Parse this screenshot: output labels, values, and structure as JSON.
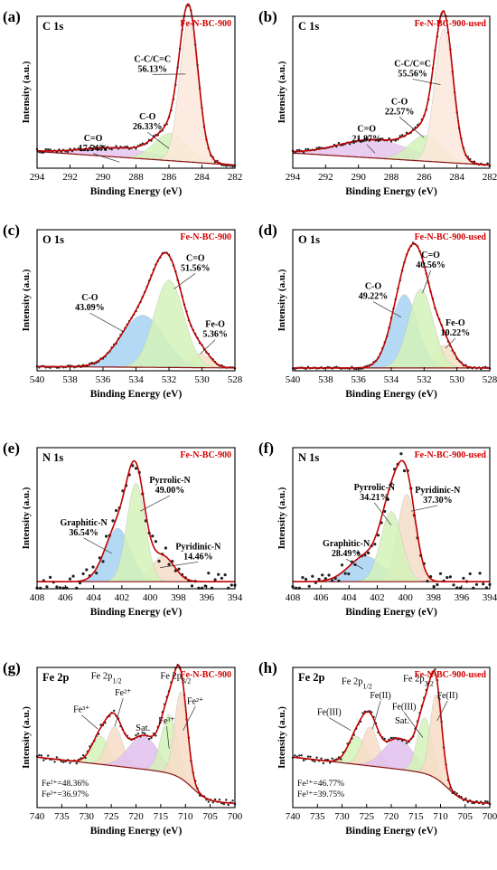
{
  "colors": {
    "sample_label": "#d40000",
    "fit_line": "#c00000",
    "points": "#222222",
    "background_line": "#8a1010",
    "component_fills": [
      "#ffd4c6",
      "#d0f0b8",
      "#a8d4f4",
      "#e2c0ee",
      "#f6e2c0"
    ]
  },
  "panels": [
    {
      "id": "a",
      "letter": "(a)",
      "region": "C 1s",
      "sample": "Fe-N-BC-900",
      "xlabel": "Binding Energy (eV)",
      "ylabel": "Intensity (a.u.)",
      "xlim": [
        294,
        282
      ],
      "xticks": [
        294,
        292,
        290,
        288,
        286,
        284,
        282
      ],
      "chart_data": {
        "type": "line",
        "components": [
          {
            "name": "C-C/C=C",
            "center": 284.8,
            "width": 0.55,
            "height": 0.93,
            "color": "#fbe8da",
            "label": "C-C/C=C",
            "value": "56.13%",
            "label_pos": [
              287.0,
              0.7
            ],
            "arrow_to": [
              285.0,
              0.62
            ]
          },
          {
            "name": "C-O",
            "center": 285.9,
            "width": 1.0,
            "height": 0.18,
            "color": "#d4f2b8",
            "label": "C-O",
            "value": "26.33%",
            "label_pos": [
              287.3,
              0.32
            ],
            "arrow_to": [
              286.0,
              0.13
            ]
          },
          {
            "name": "C=O",
            "center": 289.0,
            "width": 2.2,
            "height": 0.06,
            "color": "#e6c6ee",
            "label": "C=O",
            "value": "17.54%",
            "label_pos": [
              290.6,
              0.18
            ],
            "arrow_to": [
              289.0,
              0.04
            ]
          }
        ],
        "background": {
          "high_be": 0.11,
          "low_be": 0.02
        },
        "noise": 0.012
      }
    },
    {
      "id": "b",
      "letter": "(b)",
      "region": "C 1s",
      "sample": "Fe-N-BC-900-used",
      "xlabel": "Binding Energy (eV)",
      "ylabel": "Intensity (a.u.)",
      "xlim": [
        294,
        282
      ],
      "xticks": [
        294,
        292,
        290,
        288,
        286,
        284,
        282
      ],
      "chart_data": {
        "type": "line",
        "components": [
          {
            "name": "C-C/C=C",
            "center": 284.8,
            "width": 0.55,
            "height": 0.88,
            "color": "#fbe8da",
            "label": "C-C/C=C",
            "value": "55.56%",
            "label_pos": [
              286.7,
              0.67
            ],
            "arrow_to": [
              285.0,
              0.55
            ]
          },
          {
            "name": "C-O",
            "center": 285.9,
            "width": 1.0,
            "height": 0.17,
            "color": "#d4f2b8",
            "label": "C-O",
            "value": "22.57%",
            "label_pos": [
              287.5,
              0.42
            ],
            "arrow_to": [
              286.0,
              0.2
            ]
          },
          {
            "name": "C=O",
            "center": 289.0,
            "width": 2.2,
            "height": 0.12,
            "color": "#e6c6ee",
            "label": "C=O",
            "value": "21.87%",
            "label_pos": [
              289.5,
              0.24
            ],
            "arrow_to": [
              289.0,
              0.1
            ]
          }
        ],
        "background": {
          "high_be": 0.1,
          "low_be": 0.02
        },
        "noise": 0.012
      }
    },
    {
      "id": "c",
      "letter": "(c)",
      "region": "O 1s",
      "sample": "Fe-N-BC-900",
      "xlabel": "Binding Energy (eV)",
      "ylabel": "Intensity (a.u.)",
      "xlim": [
        540,
        528
      ],
      "xticks": [
        540,
        538,
        536,
        534,
        532,
        530,
        528
      ],
      "chart_data": {
        "type": "line",
        "components": [
          {
            "name": "C=O",
            "center": 532.0,
            "width": 0.9,
            "height": 0.62,
            "color": "#d4f2b8",
            "label": "C=O",
            "value": "51.56%",
            "label_pos": [
              530.4,
              0.78
            ],
            "arrow_to": [
              531.7,
              0.58
            ]
          },
          {
            "name": "C-O",
            "center": 533.6,
            "width": 1.3,
            "height": 0.37,
            "color": "#a6d2f2",
            "label": "C-O",
            "value": "43.09%",
            "label_pos": [
              536.8,
              0.5
            ],
            "arrow_to": [
              534.8,
              0.28
            ]
          },
          {
            "name": "Fe-O",
            "center": 530.1,
            "width": 0.6,
            "height": 0.1,
            "color": "#f6e2c4",
            "label": "Fe-O",
            "value": "5.36%",
            "label_pos": [
              529.2,
              0.31
            ],
            "arrow_to": [
              530.1,
              0.12
            ]
          }
        ],
        "background": {
          "high_be": 0.03,
          "low_be": 0.02
        },
        "noise": 0.008
      }
    },
    {
      "id": "d",
      "letter": "(d)",
      "region": "O 1s",
      "sample": "Fe-N-BC-900-used",
      "xlabel": "Binding Energy (eV)",
      "ylabel": "Intensity (a.u.)",
      "xlim": [
        540,
        528
      ],
      "xticks": [
        540,
        538,
        536,
        534,
        532,
        530,
        528
      ],
      "chart_data": {
        "type": "line",
        "components": [
          {
            "name": "C=O",
            "center": 532.2,
            "width": 0.75,
            "height": 0.56,
            "color": "#d4f2b8",
            "label": "C=O",
            "value": "40.56%",
            "label_pos": [
              531.6,
              0.8
            ],
            "arrow_to": [
              532.1,
              0.55
            ]
          },
          {
            "name": "C-O",
            "center": 533.2,
            "width": 0.8,
            "height": 0.52,
            "color": "#a6d2f2",
            "label": "C-O",
            "value": "49.22%",
            "label_pos": [
              535.1,
              0.58
            ],
            "arrow_to": [
              533.4,
              0.38
            ]
          },
          {
            "name": "Fe-O",
            "center": 530.8,
            "width": 0.6,
            "height": 0.16,
            "color": "#f6e2c4",
            "label": "Fe-O",
            "value": "10.22%",
            "label_pos": [
              530.1,
              0.32
            ],
            "arrow_to": [
              530.7,
              0.16
            ]
          }
        ],
        "background": {
          "high_be": 0.02,
          "low_be": 0.02
        },
        "noise": 0.008
      }
    },
    {
      "id": "e",
      "letter": "(e)",
      "region": "N 1s",
      "sample": "Fe-N-BC-900",
      "xlabel": "Binding Energy (eV)",
      "ylabel": "Intensity (a.u.)",
      "xlim": [
        408,
        394
      ],
      "xticks": [
        408,
        406,
        404,
        402,
        400,
        398,
        396,
        394
      ],
      "chart_data": {
        "type": "line",
        "components": [
          {
            "name": "Pyrrolic-N",
            "center": 401.0,
            "width": 0.65,
            "height": 0.7,
            "color": "#d4f2b8",
            "label": "Pyrrolic-N",
            "value": "49.00%",
            "label_pos": [
              398.6,
              0.75
            ],
            "arrow_to": [
              400.7,
              0.55
            ]
          },
          {
            "name": "Graphitic-N",
            "center": 402.3,
            "width": 0.9,
            "height": 0.38,
            "color": "#a6d2f2",
            "label": "Graphitic-N",
            "value": "36.54%",
            "label_pos": [
              404.7,
              0.45
            ],
            "arrow_to": [
              402.7,
              0.25
            ]
          },
          {
            "name": "Pyridinic-N",
            "center": 399.1,
            "width": 0.8,
            "height": 0.18,
            "color": "#f6dcc8",
            "label": "Pyridinic-N",
            "value": "14.46%",
            "label_pos": [
              396.6,
              0.28
            ],
            "arrow_to": [
              399.3,
              0.15
            ]
          }
        ],
        "background": {
          "high_be": 0.05,
          "low_be": 0.05
        },
        "noise": 0.07
      }
    },
    {
      "id": "f",
      "letter": "(f)",
      "region": "N 1s",
      "sample": "Fe-N-BC-900-used",
      "xlabel": "Binding Energy (eV)",
      "ylabel": "Intensity (a.u.)",
      "xlim": [
        408,
        394
      ],
      "xticks": [
        408,
        406,
        404,
        402,
        400,
        398,
        396,
        394
      ],
      "chart_data": {
        "type": "line",
        "components": [
          {
            "name": "Pyrrolic-N",
            "center": 401.0,
            "width": 0.75,
            "height": 0.5,
            "color": "#d4f2b8",
            "label": "Pyrrolic-N",
            "value": "34.21%",
            "label_pos": [
              402.2,
              0.7
            ],
            "arrow_to": [
              401.0,
              0.45
            ]
          },
          {
            "name": "Pyridinic-N",
            "center": 399.9,
            "width": 0.65,
            "height": 0.62,
            "color": "#f6dcc8",
            "label": "Pyridinic-N",
            "value": "37.30%",
            "label_pos": [
              397.7,
              0.68
            ],
            "arrow_to": [
              399.6,
              0.55
            ]
          },
          {
            "name": "Graphitic-N",
            "center": 402.8,
            "width": 1.2,
            "height": 0.18,
            "color": "#a6d2f2",
            "label": "Graphitic-N",
            "value": "28.49%",
            "label_pos": [
              404.2,
              0.3
            ],
            "arrow_to": [
              403.0,
              0.14
            ]
          }
        ],
        "background": {
          "high_be": 0.05,
          "low_be": 0.05
        },
        "noise": 0.06
      }
    },
    {
      "id": "g",
      "letter": "(g)",
      "region": "Fe 2p",
      "sample": "Fe-N-BC-900",
      "xlabel": "Binding Energy (eV)",
      "ylabel": "Intensity (a.u.)",
      "xlim": [
        740,
        700
      ],
      "xticks": [
        740,
        735,
        730,
        725,
        720,
        715,
        710,
        705,
        700
      ],
      "peak_labels": [
        {
          "text": "Fe 2p",
          "sub": "1/2",
          "x": 726.0,
          "y": 0.92
        },
        {
          "text": "Fe 2p",
          "sub": "3/2",
          "x": 712.0,
          "y": 0.92
        },
        {
          "text": "Sat.",
          "x": 718.6,
          "y": 0.55
        }
      ],
      "ratio_lines": [
        "Fe²⁺=48.36%",
        "Fe³⁺=36.97%"
      ],
      "chart_data": {
        "type": "line",
        "components": [
          {
            "name": "Fe2+ 2p3/2",
            "center": 710.9,
            "width": 1.3,
            "height": 0.62,
            "color": "#f8dcc8",
            "label": "Fe²⁺",
            "label_pos": [
              708.0,
              0.74
            ],
            "arrow_to": [
              710.5,
              0.55
            ]
          },
          {
            "name": "Fe3+ 2p3/2",
            "center": 713.3,
            "width": 1.6,
            "height": 0.42,
            "color": "#d4f2b8",
            "label": "Fe³⁺",
            "label_pos": [
              713.8,
              0.6
            ],
            "arrow_to": [
              713.3,
              0.42
            ]
          },
          {
            "name": "Sat.",
            "center": 718.5,
            "width": 3.0,
            "height": 0.24,
            "color": "#e2c0ee"
          },
          {
            "name": "Fe2+ 2p1/2",
            "center": 724.3,
            "width": 1.6,
            "height": 0.28,
            "color": "#f8dcc8",
            "label": "Fe²⁺",
            "label_pos": [
              722.6,
              0.8
            ],
            "arrow_to": [
              724.3,
              0.58
            ]
          },
          {
            "name": "Fe3+ 2p1/2",
            "center": 727.2,
            "width": 1.8,
            "height": 0.2,
            "color": "#d4f2b8",
            "label": "Fe³⁺",
            "label_pos": [
              731.0,
              0.68
            ],
            "arrow_to": [
              727.7,
              0.56
            ]
          }
        ],
        "background": {
          "high_be": 0.36,
          "low_be": 0.03,
          "step_center": 708.5,
          "step_width": 1.6,
          "mid": 0.2,
          "tail": 0.05
        },
        "noise": 0.02
      }
    },
    {
      "id": "h",
      "letter": "(h)",
      "region": "Fe 2p",
      "sample": "Fe-N-BC-900-used",
      "xlabel": "Binding Energy (eV)",
      "ylabel": "Intensity (a.u.)",
      "xlim": [
        740,
        700
      ],
      "xticks": [
        740,
        735,
        730,
        725,
        720,
        715,
        710,
        705,
        700
      ],
      "peak_labels": [
        {
          "text": "Fe 2p",
          "sub": "1/2",
          "x": 727.0,
          "y": 0.88
        },
        {
          "text": "Fe 2p",
          "sub": "3/2",
          "x": 714.5,
          "y": 0.9
        },
        {
          "text": "Sat.",
          "x": 717.8,
          "y": 0.6
        }
      ],
      "ratio_lines": [
        "Fe²⁺=46.77%",
        "Fe³⁺=39.75%"
      ],
      "chart_data": {
        "type": "line",
        "components": [
          {
            "name": "Fe2+ 2p3/2",
            "center": 710.9,
            "width": 1.2,
            "height": 0.6,
            "color": "#f8dcc8",
            "label": "Fe(II)",
            "label_pos": [
              708.6,
              0.78
            ],
            "arrow_to": [
              710.7,
              0.62
            ]
          },
          {
            "name": "Fe3+ 2p3/2",
            "center": 713.2,
            "width": 1.5,
            "height": 0.4,
            "color": "#d4f2b8",
            "label": "Fe(III)",
            "label_pos": [
              717.4,
              0.7
            ],
            "arrow_to": [
              713.6,
              0.5
            ]
          },
          {
            "name": "Sat.",
            "center": 718.5,
            "width": 3.0,
            "height": 0.22,
            "color": "#e2c0ee"
          },
          {
            "name": "Fe2+ 2p1/2",
            "center": 724.3,
            "width": 1.6,
            "height": 0.28,
            "color": "#f8dcc8",
            "label": "Fe(II)",
            "label_pos": [
              722.2,
              0.78
            ],
            "arrow_to": [
              723.8,
              0.56
            ]
          },
          {
            "name": "Fe3+ 2p1/2",
            "center": 727.0,
            "width": 1.8,
            "height": 0.2,
            "color": "#d4f2b8",
            "label": "Fe(III)",
            "label_pos": [
              732.6,
              0.66
            ],
            "arrow_to": [
              728.2,
              0.55
            ]
          }
        ],
        "background": {
          "high_be": 0.36,
          "low_be": 0.03,
          "step_center": 708.5,
          "step_width": 1.6,
          "mid": 0.2,
          "tail": 0.05
        },
        "noise": 0.02
      }
    }
  ]
}
